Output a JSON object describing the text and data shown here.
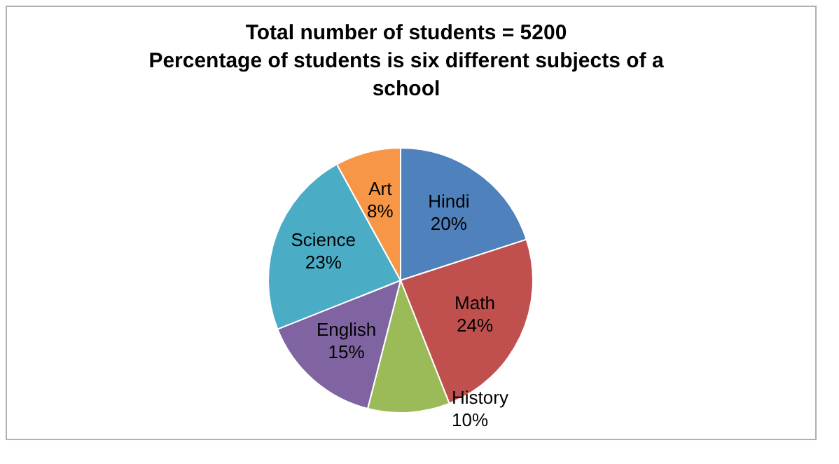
{
  "chart_data": {
    "type": "pie",
    "title": "Total number of students = 5200",
    "subtitle": "Percentage of students is six different subjects  of a school",
    "categories": [
      "Hindi",
      "Math",
      "History",
      "English",
      "Science",
      "Art"
    ],
    "values": [
      20,
      24,
      10,
      15,
      23,
      8
    ],
    "value_labels": [
      "20%",
      "24%",
      "10%",
      "15%",
      "23%",
      "8%"
    ],
    "colors": [
      "#4f81bd",
      "#c0504d",
      "#9bbb59",
      "#8064a2",
      "#4bacc6",
      "#f79646"
    ],
    "legend": false
  }
}
